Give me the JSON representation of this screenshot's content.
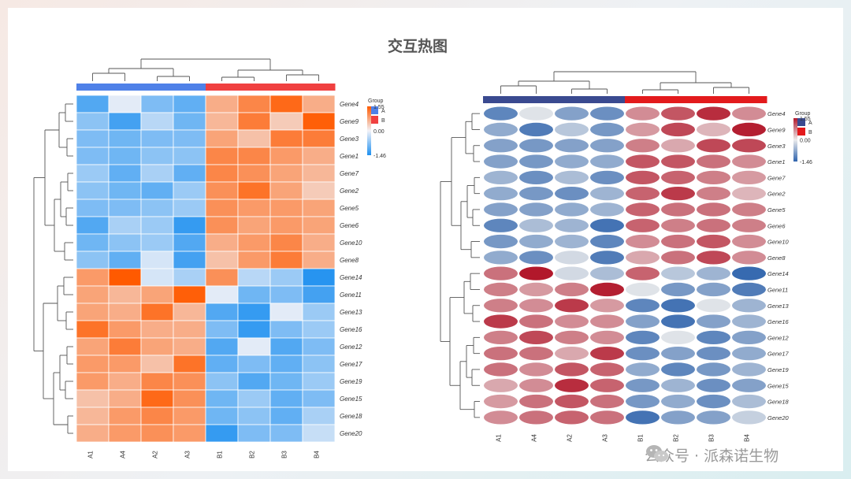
{
  "title": "交互热图",
  "watermark": {
    "text": "公众号 · 派森诺生物",
    "logo_icon": "wechat-icon"
  },
  "chart_data": [
    {
      "type": "heatmap",
      "style": "tile",
      "title": "",
      "columns": [
        "A1",
        "A4",
        "A2",
        "A3",
        "B1",
        "B2",
        "B3",
        "B4"
      ],
      "rows": [
        "Gene4",
        "Gene9",
        "Gene3",
        "Gene1",
        "Gene7",
        "Gene2",
        "Gene5",
        "Gene6",
        "Gene10",
        "Gene8",
        "Gene14",
        "Gene11",
        "Gene13",
        "Gene16",
        "Gene12",
        "Gene17",
        "Gene19",
        "Gene15",
        "Gene18",
        "Gene20"
      ],
      "values": [
        [
          -1.1,
          -0.1,
          -0.8,
          -1.0,
          0.7,
          1.1,
          1.4,
          0.7
        ],
        [
          -0.7,
          -1.2,
          -0.4,
          -0.9,
          0.6,
          1.2,
          0.4,
          1.5
        ],
        [
          -0.8,
          -0.9,
          -0.8,
          -0.8,
          0.8,
          0.5,
          1.2,
          1.2
        ],
        [
          -0.8,
          -0.9,
          -0.7,
          -0.7,
          1.1,
          1.1,
          0.9,
          0.7
        ],
        [
          -0.6,
          -1.0,
          -0.5,
          -1.0,
          1.1,
          1.0,
          0.8,
          0.6
        ],
        [
          -0.7,
          -0.9,
          -1.0,
          -0.6,
          1.0,
          1.3,
          0.8,
          0.4
        ],
        [
          -0.8,
          -0.8,
          -0.7,
          -0.6,
          1.0,
          0.9,
          0.9,
          0.8
        ],
        [
          -1.1,
          -0.5,
          -0.6,
          -1.3,
          1.0,
          0.8,
          0.9,
          0.8
        ],
        [
          -0.9,
          -0.7,
          -0.6,
          -1.1,
          0.7,
          0.9,
          1.1,
          0.7
        ],
        [
          -0.7,
          -1.0,
          -0.2,
          -1.2,
          0.5,
          0.9,
          1.2,
          0.7
        ],
        [
          0.9,
          1.55,
          -0.2,
          -0.5,
          1.0,
          -0.4,
          -0.6,
          -1.4
        ],
        [
          0.8,
          0.6,
          0.8,
          1.5,
          -0.1,
          -0.9,
          -0.8,
          -1.2
        ],
        [
          0.8,
          0.7,
          1.3,
          0.6,
          -1.1,
          -1.3,
          -0.1,
          -0.6
        ],
        [
          1.3,
          0.9,
          0.7,
          0.7,
          -0.8,
          -1.3,
          -0.8,
          -0.6
        ],
        [
          0.8,
          1.2,
          0.8,
          0.7,
          -1.1,
          -0.1,
          -1.1,
          -0.8
        ],
        [
          0.9,
          0.9,
          0.5,
          1.3,
          -1.0,
          -0.8,
          -1.0,
          -0.7
        ],
        [
          0.9,
          0.7,
          1.1,
          1.0,
          -0.7,
          -1.1,
          -0.9,
          -0.6
        ],
        [
          0.5,
          0.7,
          1.4,
          1.0,
          -0.9,
          -0.6,
          -1.0,
          -0.8
        ],
        [
          0.6,
          0.9,
          1.1,
          0.9,
          -0.9,
          -0.7,
          -1.0,
          -0.5
        ],
        [
          0.7,
          0.9,
          1.0,
          0.9,
          -1.3,
          -0.8,
          -0.8,
          -0.3
        ]
      ],
      "groups": [
        "A",
        "A",
        "A",
        "A",
        "B",
        "B",
        "B",
        "B"
      ],
      "legend": {
        "title": "Group",
        "items": [
          {
            "label": "A",
            "color": "#4f81e8"
          },
          {
            "label": "B",
            "color": "#f04040"
          }
        ]
      },
      "colorbar": {
        "max_label": "1.55",
        "mid_label": "0.00",
        "min_label": "-1.46",
        "min": -1.46,
        "max": 1.55
      },
      "colors": {
        "low": "#1e90f0",
        "mid": "#f2f2f8",
        "high": "#ff5a00"
      }
    },
    {
      "type": "heatmap",
      "style": "ellipse",
      "title": "",
      "columns": [
        "A1",
        "A4",
        "A2",
        "A3",
        "B1",
        "B2",
        "B3",
        "B4"
      ],
      "rows": [
        "Gene4",
        "Gene9",
        "Gene3",
        "Gene1",
        "Gene7",
        "Gene2",
        "Gene5",
        "Gene6",
        "Gene10",
        "Gene8",
        "Gene14",
        "Gene11",
        "Gene13",
        "Gene16",
        "Gene12",
        "Gene17",
        "Gene19",
        "Gene15",
        "Gene18",
        "Gene20"
      ],
      "values": [
        [
          -1.1,
          -0.1,
          -0.8,
          -1.0,
          0.7,
          1.1,
          1.4,
          0.7
        ],
        [
          -0.7,
          -1.2,
          -0.4,
          -0.9,
          0.6,
          1.2,
          0.4,
          1.5
        ],
        [
          -0.8,
          -0.9,
          -0.8,
          -0.8,
          0.8,
          0.5,
          1.2,
          1.2
        ],
        [
          -0.8,
          -0.9,
          -0.7,
          -0.7,
          1.1,
          1.1,
          0.9,
          0.7
        ],
        [
          -0.6,
          -1.0,
          -0.5,
          -1.0,
          1.1,
          1.0,
          0.8,
          0.6
        ],
        [
          -0.7,
          -0.9,
          -1.0,
          -0.6,
          1.0,
          1.3,
          0.8,
          0.4
        ],
        [
          -0.8,
          -0.8,
          -0.7,
          -0.6,
          1.0,
          0.9,
          0.9,
          0.8
        ],
        [
          -1.1,
          -0.5,
          -0.6,
          -1.3,
          1.0,
          0.8,
          0.9,
          0.8
        ],
        [
          -0.9,
          -0.7,
          -0.6,
          -1.1,
          0.7,
          0.9,
          1.1,
          0.7
        ],
        [
          -0.7,
          -1.0,
          -0.2,
          -1.2,
          0.5,
          0.9,
          1.2,
          0.7
        ],
        [
          0.9,
          1.55,
          -0.2,
          -0.5,
          1.0,
          -0.4,
          -0.6,
          -1.4
        ],
        [
          0.8,
          0.6,
          0.8,
          1.5,
          -0.1,
          -0.9,
          -0.8,
          -1.2
        ],
        [
          0.8,
          0.7,
          1.3,
          0.6,
          -1.1,
          -1.3,
          -0.1,
          -0.6
        ],
        [
          1.3,
          0.9,
          0.7,
          0.7,
          -0.8,
          -1.3,
          -0.8,
          -0.6
        ],
        [
          0.8,
          1.2,
          0.8,
          0.7,
          -1.1,
          -0.1,
          -1.1,
          -0.8
        ],
        [
          0.9,
          0.9,
          0.5,
          1.3,
          -1.0,
          -0.8,
          -1.0,
          -0.7
        ],
        [
          0.9,
          0.7,
          1.1,
          1.0,
          -0.7,
          -1.1,
          -0.9,
          -0.6
        ],
        [
          0.5,
          0.7,
          1.4,
          1.0,
          -0.9,
          -0.6,
          -1.0,
          -0.8
        ],
        [
          0.6,
          0.9,
          1.1,
          0.9,
          -0.9,
          -0.7,
          -1.0,
          -0.5
        ],
        [
          0.7,
          0.9,
          1.0,
          0.9,
          -1.3,
          -0.8,
          -0.8,
          -0.3
        ]
      ],
      "groups": [
        "A",
        "A",
        "A",
        "A",
        "B",
        "B",
        "B",
        "B"
      ],
      "legend": {
        "title": "Group",
        "items": [
          {
            "label": "A",
            "color": "#3a4a90"
          },
          {
            "label": "B",
            "color": "#e31a1c"
          }
        ]
      },
      "colorbar": {
        "max_label": "1.55",
        "mid_label": "0.00",
        "min_label": "-1.46",
        "min": -1.46,
        "max": 1.55
      },
      "colors": {
        "low": "#2f64ad",
        "mid": "#ececec",
        "high": "#b2182b"
      }
    }
  ]
}
